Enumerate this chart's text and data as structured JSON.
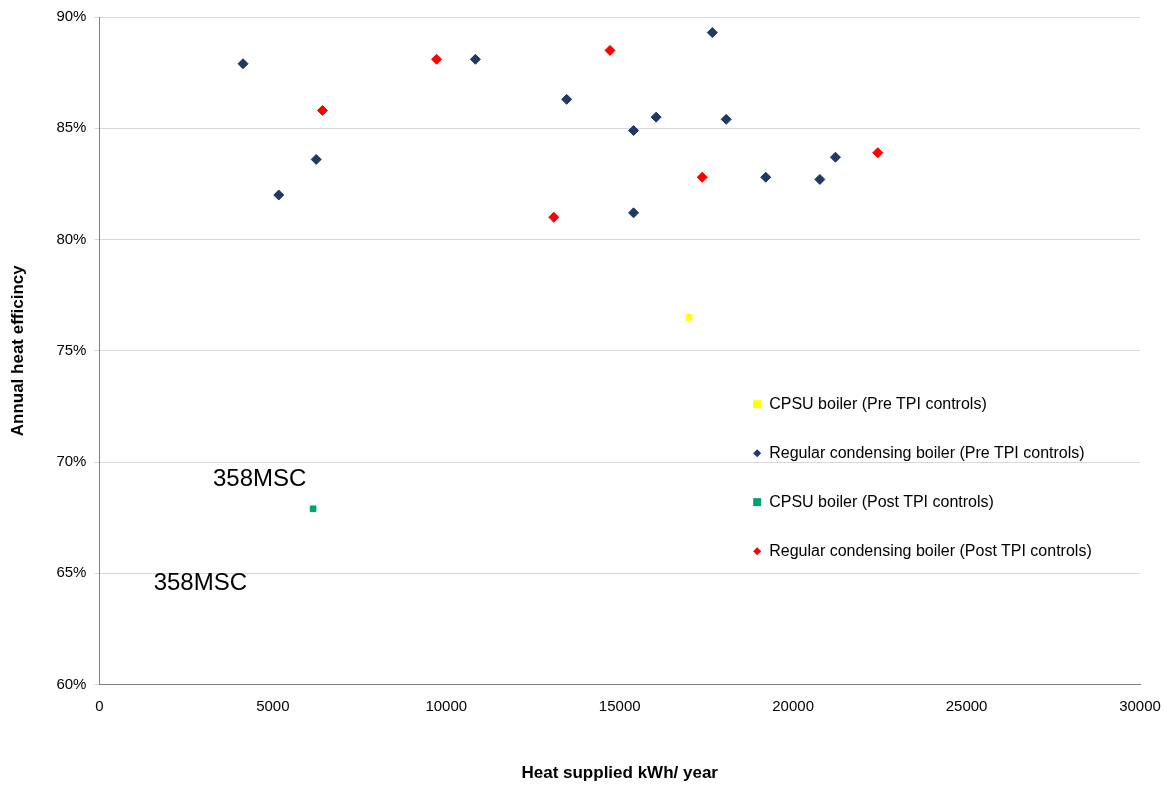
{
  "chart_data": {
    "type": "scatter",
    "xlabel": "Heat supplied kWh/ year",
    "ylabel": "Annual heat efficincy",
    "xlim": [
      0,
      30000
    ],
    "xticks": [
      0,
      5000,
      10000,
      15000,
      20000,
      25000,
      30000
    ],
    "ylim": [
      60,
      90
    ],
    "yticks": [
      {
        "value": 60,
        "label": "60%"
      },
      {
        "value": 65,
        "label": "65%"
      },
      {
        "value": 70,
        "label": "70%"
      },
      {
        "value": 75,
        "label": "75%"
      },
      {
        "value": 80,
        "label": "80%"
      },
      {
        "value": 85,
        "label": "85%"
      },
      {
        "value": 90,
        "label": "90%"
      }
    ],
    "grid": "y",
    "legend": "right",
    "series": [
      {
        "name": "CPSU boiler (Pre TPI controls)",
        "color": "#ffff00",
        "marker": "square",
        "x": [
          17000
        ],
        "values": [
          76.5
        ]
      },
      {
        "name": "Regular condensing boiler (Pre TPI controls)",
        "color": "#1f3864",
        "marker": "diamond",
        "x": [
          4140,
          5170,
          6250,
          10840,
          13470,
          15400,
          16050,
          17670,
          18070,
          15400,
          19210,
          20770,
          21220
        ],
        "values": [
          87.9,
          82.0,
          83.6,
          88.1,
          86.3,
          84.9,
          85.5,
          89.3,
          85.4,
          81.2,
          82.8,
          82.7,
          83.7
        ]
      },
      {
        "name": "CPSU boiler (Post TPI controls)",
        "color": "#00a070",
        "marker": "square",
        "x": [
          6160
        ],
        "values": [
          67.9
        ]
      },
      {
        "name": "Regular condensing boiler (Post TPI controls)",
        "color": "#ff0000",
        "marker": "diamond",
        "x": [
          6430,
          9720,
          13100,
          14720,
          17380,
          22440
        ],
        "values": [
          85.8,
          88.1,
          81.0,
          88.5,
          82.8,
          83.9
        ]
      }
    ],
    "annotations": [
      "358MSC",
      "358MSC"
    ]
  }
}
